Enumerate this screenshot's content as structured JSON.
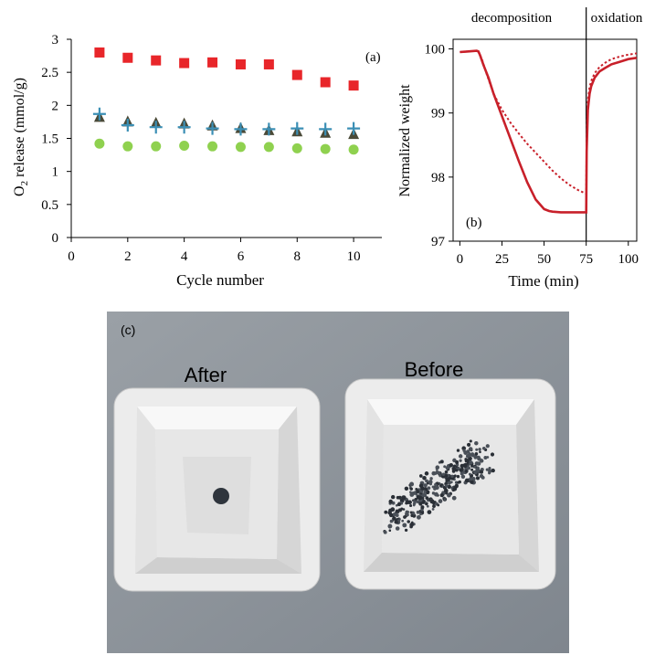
{
  "chart_data": [
    {
      "type": "scatter",
      "label": "(a)",
      "xlabel": "Cycle number",
      "ylabel": "O2 release (mmol/g)",
      "ylabel_main": "O",
      "ylabel_sub": "2",
      "ylabel_rest": " release (mmol/g)",
      "xlim": [
        0,
        11
      ],
      "ylim": [
        0,
        3
      ],
      "xticks": [
        0,
        2,
        4,
        6,
        8,
        10
      ],
      "yticks": [
        0,
        0.5,
        1,
        1.5,
        2,
        2.5,
        3
      ],
      "ytick_labels": [
        "0",
        "0.5",
        "1",
        "1.5",
        "2",
        "2.5",
        "3"
      ],
      "grid": false,
      "series": [
        {
          "marker": "square",
          "color": "#e8262a",
          "x": [
            1,
            2,
            3,
            4,
            5,
            6,
            7,
            8,
            9,
            10
          ],
          "y": [
            2.8,
            2.72,
            2.68,
            2.64,
            2.65,
            2.62,
            2.62,
            2.46,
            2.35,
            2.3
          ]
        },
        {
          "marker": "triangle",
          "color": "#4a4a38",
          "x": [
            1,
            2,
            3,
            4,
            5,
            6,
            7,
            8,
            9,
            10
          ],
          "y": [
            1.82,
            1.75,
            1.73,
            1.72,
            1.69,
            1.65,
            1.62,
            1.6,
            1.58,
            1.56
          ]
        },
        {
          "marker": "plus",
          "color": "#3b8fb5",
          "x": [
            1,
            2,
            3,
            4,
            5,
            6,
            7,
            8,
            9,
            10
          ],
          "y": [
            1.87,
            1.7,
            1.67,
            1.67,
            1.65,
            1.64,
            1.64,
            1.65,
            1.64,
            1.65
          ]
        },
        {
          "marker": "circle",
          "color": "#8fd14f",
          "x": [
            1,
            2,
            3,
            4,
            5,
            6,
            7,
            8,
            9,
            10
          ],
          "y": [
            1.42,
            1.38,
            1.38,
            1.39,
            1.38,
            1.37,
            1.37,
            1.35,
            1.34,
            1.33
          ]
        }
      ]
    },
    {
      "type": "line",
      "label": "(b)",
      "xlabel": "Time (min)",
      "ylabel": "Normalized weight",
      "xlim": [
        -4,
        105
      ],
      "ylim": [
        97,
        100.15
      ],
      "xticks": [
        0,
        25,
        50,
        75,
        100
      ],
      "yticks": [
        97,
        98,
        99,
        100
      ],
      "grid": false,
      "regions": [
        {
          "label": "decomposition",
          "x_start": -4,
          "x_end": 75
        },
        {
          "label": "oxidation",
          "x_start": 75,
          "x_end": 105
        }
      ],
      "region_divider_x": 75,
      "series": [
        {
          "style": "solid",
          "color": "#c8202a",
          "x": [
            0,
            5,
            10,
            11,
            12,
            14,
            17,
            20,
            25,
            30,
            35,
            40,
            45,
            50,
            53,
            55,
            60,
            65,
            70,
            75,
            75.3,
            76,
            77,
            78,
            80,
            83,
            86,
            90,
            95,
            100,
            105
          ],
          "y": [
            99.95,
            99.96,
            99.97,
            99.96,
            99.9,
            99.75,
            99.55,
            99.3,
            98.95,
            98.6,
            98.25,
            97.92,
            97.65,
            97.5,
            97.47,
            97.46,
            97.45,
            97.45,
            97.45,
            97.45,
            98.4,
            99.05,
            99.3,
            99.42,
            99.55,
            99.65,
            99.7,
            99.76,
            99.8,
            99.84,
            99.86
          ]
        },
        {
          "style": "dotted",
          "color": "#c8202a",
          "x": [
            0,
            5,
            10,
            11,
            13,
            16,
            20,
            25,
            30,
            35,
            40,
            45,
            50,
            55,
            60,
            65,
            70,
            75,
            75.3,
            76,
            77,
            78,
            80,
            83,
            86,
            90,
            95,
            100,
            105
          ],
          "y": [
            99.95,
            99.96,
            99.97,
            99.95,
            99.85,
            99.6,
            99.3,
            99.05,
            98.85,
            98.68,
            98.52,
            98.38,
            98.24,
            98.1,
            97.98,
            97.88,
            97.8,
            97.74,
            98.6,
            99.2,
            99.4,
            99.5,
            99.62,
            99.72,
            99.78,
            99.84,
            99.88,
            99.91,
            99.93
          ]
        }
      ]
    }
  ],
  "photo": {
    "panel_label": "(c)",
    "left_dish_label": "After",
    "right_dish_label": "Before"
  }
}
